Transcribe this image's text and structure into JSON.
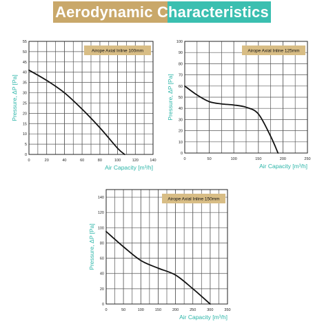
{
  "page": {
    "title": "Aerodynamic Characteristics"
  },
  "colors": {
    "banner_left": "#c9a86a",
    "banner_right": "#3bbfb0",
    "axis_label": "#2bb5a8",
    "model_tag": "#d8bd85",
    "curve": "#111111"
  },
  "chart_data": [
    {
      "type": "line",
      "title": "Airope Axial Inline 100mm",
      "xlabel": "Air Capacity [m³/h]",
      "ylabel": "Pressure, ΔP [Pa]",
      "xlim": [
        0,
        140
      ],
      "ylim": [
        0,
        55
      ],
      "xticks": [
        0,
        20,
        40,
        60,
        80,
        100,
        120,
        140
      ],
      "yticks": [
        0,
        5,
        10,
        15,
        20,
        25,
        30,
        35,
        40,
        45,
        50,
        55
      ],
      "grid": true,
      "legend": "top-right",
      "series": [
        {
          "x": [
            0,
            20,
            40,
            60,
            80,
            100,
            108
          ],
          "y": [
            41,
            36,
            30,
            22,
            13,
            3,
            0
          ]
        }
      ]
    },
    {
      "type": "line",
      "title": "Airope Axial Inline 125mm",
      "xlabel": "Air Capacity [m³/h]",
      "ylabel": "Pressure, ΔP [Pa]",
      "xlim": [
        0,
        250
      ],
      "ylim": [
        0,
        100
      ],
      "xticks": [
        0,
        50,
        100,
        150,
        200,
        250
      ],
      "yticks": [
        0,
        10,
        20,
        30,
        40,
        50,
        60,
        70,
        80,
        90,
        100
      ],
      "grid": true,
      "legend": "top-right",
      "series": [
        {
          "x": [
            0,
            25,
            50,
            75,
            100,
            125,
            150,
            175,
            190
          ],
          "y": [
            60,
            52,
            46,
            44,
            43,
            41,
            35,
            15,
            0
          ]
        }
      ]
    },
    {
      "type": "line",
      "title": "Airope Axial Inline 150mm",
      "xlabel": "Air Capacity [m³/h]",
      "ylabel": "Pressure, ΔP [Pa]",
      "xlim": [
        0,
        350
      ],
      "ylim": [
        0,
        150
      ],
      "xticks": [
        0,
        50,
        100,
        150,
        200,
        250,
        300,
        350
      ],
      "yticks": [
        0,
        20,
        40,
        60,
        80,
        100,
        120,
        140
      ],
      "grid": true,
      "legend": "top-right",
      "series": [
        {
          "x": [
            0,
            50,
            100,
            150,
            200,
            250,
            300
          ],
          "y": [
            95,
            75,
            57,
            47,
            38,
            20,
            0
          ]
        }
      ]
    }
  ]
}
